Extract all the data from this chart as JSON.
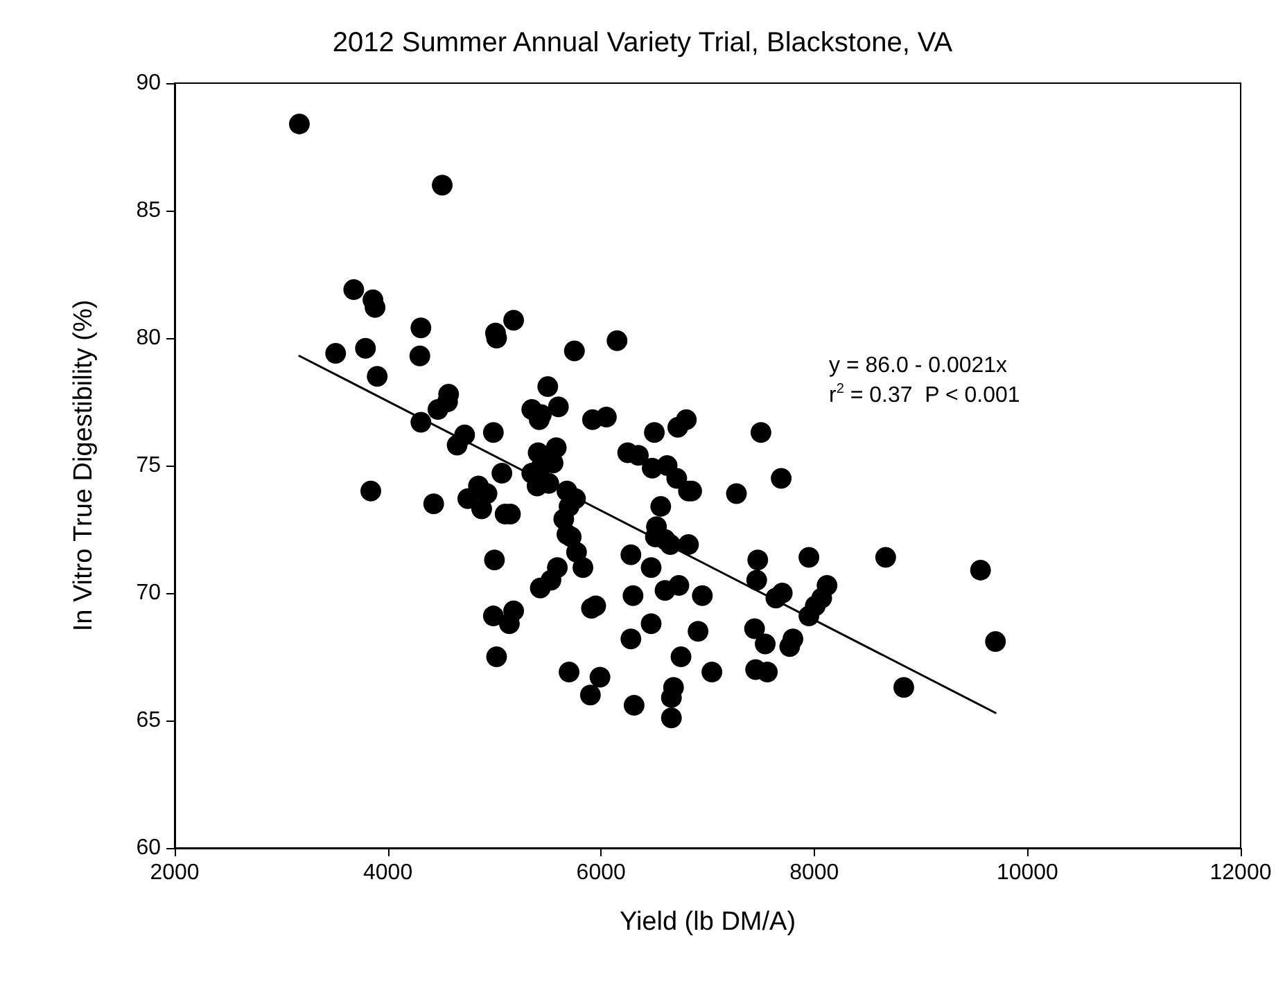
{
  "chart_data": {
    "type": "scatter",
    "title": "2012 Summer Annual Variety Trial, Blackstone, VA",
    "xlabel": "Yield (lb DM/A)",
    "ylabel": "In Vitro True Digestibility (%)",
    "annotations": [
      "y = 86.0 - 0.0021x",
      "r$^{2}$ = 0.37  P < 0.001"
    ],
    "xlim": [
      2000,
      12000
    ],
    "xticks": [
      2000,
      4000,
      6000,
      8000,
      10000,
      12000
    ],
    "ylim": [
      60,
      90
    ],
    "yticks": [
      60,
      65,
      70,
      75,
      80,
      85,
      90
    ],
    "marker": "circle",
    "series": [
      {
        "color": "#000000",
        "x": [
          3170,
          4510,
          3680,
          3860,
          3880,
          3510,
          3790,
          3900,
          4310,
          4300,
          5010,
          5020,
          5180,
          5750,
          6150,
          4560,
          4570,
          4470,
          4310,
          4720,
          4650,
          3840,
          4430,
          4750,
          4850,
          4880,
          4930,
          4990,
          5070,
          5100,
          5150,
          5350,
          5420,
          5440,
          5500,
          5600,
          5410,
          5350,
          5400,
          5430,
          5510,
          5550,
          5580,
          5680,
          5700,
          5760,
          5650,
          5680,
          5720,
          5770,
          5830,
          5590,
          5530,
          5430,
          5000,
          4990,
          5140,
          5180,
          5020,
          5700,
          5910,
          5950,
          5900,
          5990,
          5920,
          6050,
          6250,
          6350,
          6500,
          6620,
          6720,
          6800,
          6710,
          6820,
          6850,
          6480,
          6560,
          6520,
          6510,
          6600,
          6650,
          6820,
          6280,
          6470,
          6300,
          6600,
          6730,
          6950,
          6280,
          6470,
          6910,
          6750,
          7040,
          6680,
          6660,
          6660,
          6310,
          7270,
          7500,
          7690,
          7470,
          7460,
          7640,
          7700,
          7440,
          7540,
          7450,
          7560,
          7770,
          7800,
          7950,
          7950,
          8010,
          8070,
          8120,
          8670,
          8840,
          9560,
          9700
        ],
        "values": [
          88.4,
          86.0,
          81.9,
          81.5,
          81.2,
          79.4,
          79.6,
          78.5,
          80.4,
          79.3,
          80.2,
          80.0,
          80.7,
          79.5,
          79.9,
          77.5,
          77.8,
          77.2,
          76.7,
          76.2,
          75.8,
          74.0,
          73.5,
          73.7,
          74.2,
          73.3,
          73.9,
          76.3,
          74.7,
          73.1,
          73.1,
          77.2,
          76.8,
          77.0,
          78.1,
          77.3,
          75.5,
          74.7,
          74.2,
          74.9,
          74.3,
          75.1,
          75.7,
          74.0,
          73.4,
          73.7,
          72.9,
          72.3,
          72.2,
          71.6,
          71.0,
          71.0,
          70.5,
          70.2,
          71.3,
          69.1,
          68.8,
          69.3,
          67.5,
          66.9,
          69.4,
          69.5,
          66.0,
          66.7,
          76.8,
          76.9,
          75.5,
          75.4,
          76.3,
          75.0,
          76.5,
          76.8,
          74.5,
          74.0,
          74.0,
          74.9,
          73.4,
          72.6,
          72.2,
          72.1,
          71.9,
          71.9,
          71.5,
          71.0,
          69.9,
          70.1,
          70.3,
          69.9,
          68.2,
          68.8,
          68.5,
          67.5,
          66.9,
          66.3,
          65.9,
          65.1,
          65.6,
          73.9,
          76.3,
          74.5,
          71.3,
          70.5,
          69.8,
          70.0,
          68.6,
          68.0,
          67.0,
          66.9,
          67.9,
          68.2,
          71.4,
          69.1,
          69.5,
          69.8,
          70.3,
          71.4,
          66.3,
          70.9,
          68.1
        ]
      },
      {
        "type": "line",
        "color": "#000000",
        "marker": "none",
        "line_style": "solid",
        "x": [
          3170,
          9700
        ],
        "values": [
          79.3,
          65.3
        ]
      }
    ]
  }
}
